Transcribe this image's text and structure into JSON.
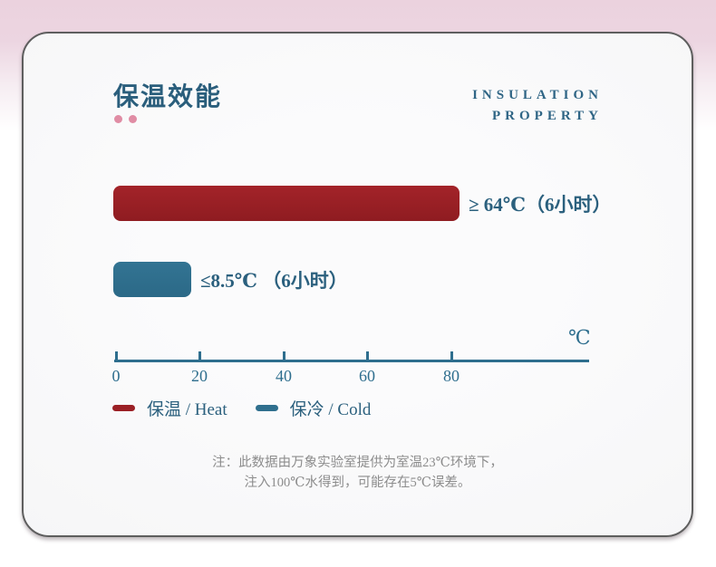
{
  "card": {
    "title": "保温效能",
    "subtitle_en": {
      "line1": "INSULATION",
      "line2": "PROPERTY"
    }
  },
  "chart_data": {
    "type": "bar",
    "orientation": "horizontal",
    "title": "保温效能",
    "subtitle": "INSULATION PROPERTY",
    "unit_label": "℃",
    "x_ticks": [
      0,
      20,
      40,
      60,
      80
    ],
    "xlim": [
      0,
      100
    ],
    "grid": false,
    "legend_position": "bottom-left",
    "series": [
      {
        "name": "保温 / Heat",
        "comparator": "≥",
        "value": 64,
        "unit": "℃",
        "duration": "6小时",
        "display_label": "≥ 64℃（6小时）",
        "color": "#9b2025"
      },
      {
        "name": "保冷 / Cold",
        "comparator": "≤",
        "value": 8.5,
        "unit": "℃",
        "duration": "6小时",
        "display_label": "≤8.5℃ （6小时）",
        "color": "#2f6f8e"
      }
    ],
    "note": "注：此数据由万象实验室提供为室温23℃环境下，注入100℃水得到，可能存在5℃误差。"
  },
  "bars": {
    "heat_label": "≥ 64℃（6小时）",
    "cold_label": "≤8.5℃ （6小时）"
  },
  "axis": {
    "unit": "℃",
    "ticks": [
      "0",
      "20",
      "40",
      "60",
      "80"
    ]
  },
  "legend": {
    "heat": "保温 / Heat",
    "cold": "保冷 / Cold"
  },
  "note": {
    "line1": "注：此数据由万象实验室提供为室温23℃环境下，",
    "line2": "注入100℃水得到，可能存在5℃误差。"
  },
  "colors": {
    "heat": "#9b2025",
    "cold": "#2f6f8e",
    "teal_text": "#2b607e",
    "pink_dot": "#e08ca4",
    "note_gray": "#8c8c8c",
    "background_pink": "#ebd2de"
  }
}
